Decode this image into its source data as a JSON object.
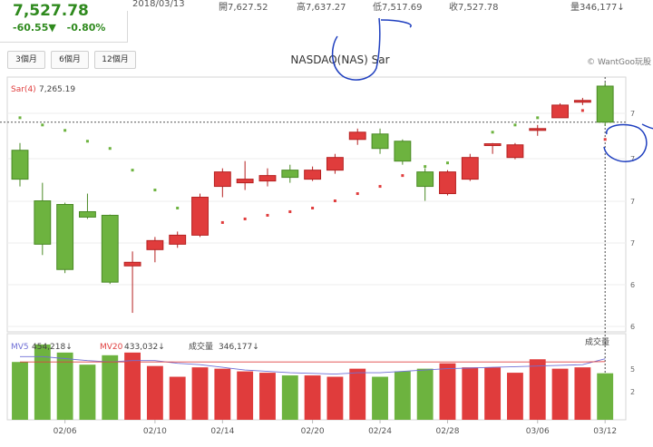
{
  "header": {
    "price": "7,527.78",
    "change": "-60.55▼",
    "change_pct": "-0.80%",
    "date": "2018/03/13",
    "open_label": "開",
    "open": "7,627.52",
    "high_label": "高",
    "high": "7,637.27",
    "low_label": "低",
    "low": "7,517.69",
    "close_label": "收",
    "close": "7,527.78",
    "volume_label": "量",
    "volume": "346,177↓"
  },
  "toolbar": {
    "range_buttons": [
      "3個月",
      "6個月",
      "12個月"
    ],
    "title": "NASDAQ(NAS) Sar",
    "watermark": "© WantGoo玩股"
  },
  "colors": {
    "up": "#e03c3c",
    "down": "#6db33f",
    "ma5": "#6f6fd6",
    "ma20": "#e04040",
    "annotation": "#1f3fbf"
  },
  "chart_data": [
    {
      "type": "candlestick",
      "indicator_label": "Sar(4)",
      "indicator_value": "7,265.19",
      "right_axis_ticks": [
        "7",
        "7",
        "7",
        "7",
        "6",
        "6"
      ],
      "candles": [
        {
          "o": 7450,
          "h": 7470,
          "l": 7350,
          "c": 7370
        },
        {
          "o": 7310,
          "h": 7360,
          "l": 7160,
          "c": 7190
        },
        {
          "o": 7300,
          "h": 7305,
          "l": 7110,
          "c": 7120
        },
        {
          "o": 7280,
          "h": 7330,
          "l": 7260,
          "c": 7265
        },
        {
          "o": 7270,
          "h": 7272,
          "l": 7080,
          "c": 7085
        },
        {
          "o": 7130,
          "h": 7170,
          "l": 7000,
          "c": 7140
        },
        {
          "o": 7175,
          "h": 7210,
          "l": 7140,
          "c": 7200
        },
        {
          "o": 7190,
          "h": 7225,
          "l": 7180,
          "c": 7215
        },
        {
          "o": 7215,
          "h": 7330,
          "l": 7210,
          "c": 7320
        },
        {
          "o": 7350,
          "h": 7400,
          "l": 7320,
          "c": 7390
        },
        {
          "o": 7360,
          "h": 7420,
          "l": 7340,
          "c": 7370
        },
        {
          "o": 7365,
          "h": 7400,
          "l": 7350,
          "c": 7380
        },
        {
          "o": 7395,
          "h": 7410,
          "l": 7360,
          "c": 7375
        },
        {
          "o": 7370,
          "h": 7405,
          "l": 7365,
          "c": 7395
        },
        {
          "o": 7395,
          "h": 7440,
          "l": 7385,
          "c": 7430
        },
        {
          "o": 7480,
          "h": 7510,
          "l": 7465,
          "c": 7500
        },
        {
          "o": 7495,
          "h": 7510,
          "l": 7440,
          "c": 7455
        },
        {
          "o": 7475,
          "h": 7480,
          "l": 7410,
          "c": 7420
        },
        {
          "o": 7390,
          "h": 7400,
          "l": 7310,
          "c": 7350
        },
        {
          "o": 7330,
          "h": 7395,
          "l": 7325,
          "c": 7390
        },
        {
          "o": 7370,
          "h": 7440,
          "l": 7365,
          "c": 7430
        },
        {
          "o": 7465,
          "h": 7470,
          "l": 7440,
          "c": 7468
        },
        {
          "o": 7430,
          "h": 7470,
          "l": 7425,
          "c": 7465
        },
        {
          "o": 7505,
          "h": 7520,
          "l": 7490,
          "c": 7510
        },
        {
          "o": 7540,
          "h": 7580,
          "l": 7540,
          "c": 7575
        },
        {
          "o": 7585,
          "h": 7595,
          "l": 7575,
          "c": 7588
        },
        {
          "o": 7627.52,
          "h": 7637.27,
          "l": 7517.69,
          "c": 7527.78
        }
      ],
      "sar": [
        7540,
        7520,
        7505,
        7475,
        7455,
        7395,
        7340,
        7290,
        7260,
        7250,
        7260,
        7270,
        7280,
        7290,
        7310,
        7330,
        7350,
        7380,
        7405,
        7415,
        7400,
        7500,
        7520,
        7540,
        7560,
        7560,
        7480
      ]
    },
    {
      "type": "bar",
      "ma5_label": "MV5",
      "ma5_value": "454,218↓",
      "ma20_label": "MV20",
      "ma20_value": "433,032↓",
      "volume_label": "成交量",
      "volume_value": "346,177↓",
      "corner_label": "成交量",
      "right_axis_ticks": [
        "5",
        "2"
      ],
      "volumes": [
        430,
        560,
        500,
        410,
        480,
        500,
        400,
        320,
        390,
        380,
        360,
        350,
        330,
        330,
        320,
        380,
        320,
        360,
        380,
        420,
        390,
        390,
        350,
        450,
        380,
        390,
        346
      ],
      "ma5": [
        470,
        470,
        455,
        440,
        430,
        440,
        440,
        420,
        410,
        390,
        370,
        360,
        350,
        345,
        340,
        350,
        350,
        360,
        370,
        380,
        385,
        390,
        395,
        400,
        405,
        410,
        454
      ],
      "ma20": [
        430,
        430,
        430,
        430,
        430,
        430,
        430,
        430,
        430,
        430,
        430,
        430,
        430,
        430,
        430,
        430,
        430,
        430,
        430,
        430,
        430,
        430,
        430,
        430,
        430,
        430,
        433
      ],
      "x_labels": [
        "02/06",
        "02/10",
        "02/14",
        "02/20",
        "02/24",
        "02/28",
        "03/06",
        "03/12"
      ]
    }
  ]
}
